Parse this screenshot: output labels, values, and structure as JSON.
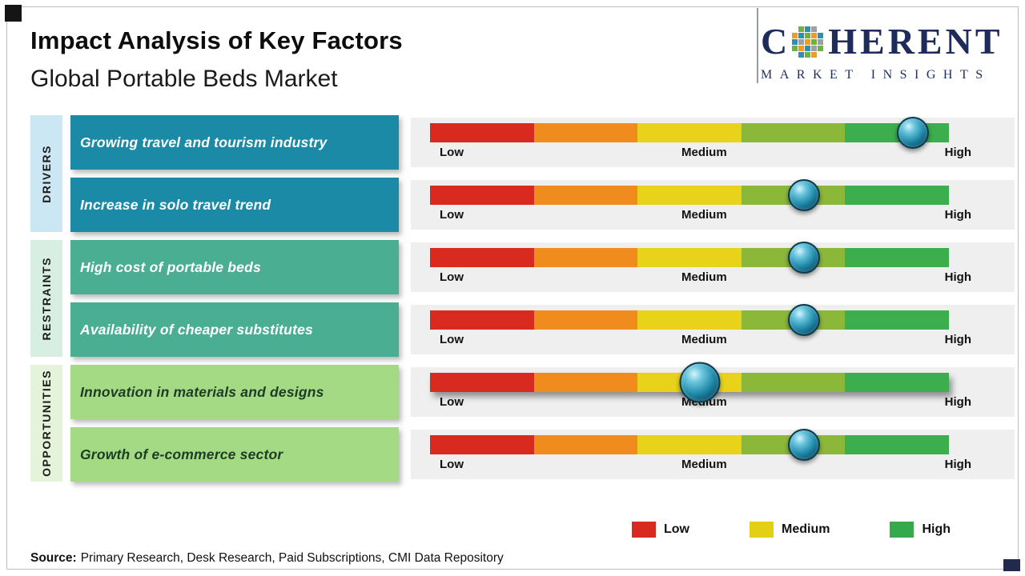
{
  "page": {
    "title": "Impact Analysis of Key Factors",
    "subtitle": "Global Portable Beds Market",
    "source_label": "Source:",
    "source_text": "Primary Research, Desk Research, Paid Subscriptions, CMI Data Repository"
  },
  "logo": {
    "brand_prefix": "C",
    "brand_suffix": "HERENT",
    "tagline": "MARKET INSIGHTS",
    "color": "#1d2c5b",
    "mosaic": [
      "",
      "#6cb33f",
      "#2f8fb0",
      "#9aa0a6",
      "",
      "#f19b1f",
      "#2f8fb0",
      "#6cb33f",
      "#f19b1f",
      "#2f8fb0",
      "#2f8fb0",
      "#9aa0a6",
      "#f19b1f",
      "#6cb33f",
      "#9aa0a6",
      "#6cb33f",
      "#f19b1f",
      "#2f8fb0",
      "#9aa0a6",
      "#6cb33f",
      "",
      "#2f8fb0",
      "#6cb33f",
      "#f19b1f",
      ""
    ]
  },
  "scale": {
    "low": "Low",
    "medium": "Medium",
    "high": "High"
  },
  "bar_colors": [
    "#d92a20",
    "#f08c1e",
    "#e8d21a",
    "#8cb83a",
    "#3cae4d"
  ],
  "legend": [
    {
      "label": "Low",
      "color": "#d92a20"
    },
    {
      "label": "Medium",
      "color": "#e3cf13"
    },
    {
      "label": "High",
      "color": "#35a94c"
    }
  ],
  "groups": [
    {
      "name": "DRIVERS",
      "strip_color": "#cbe7f3",
      "box_color": "#1a8aa6",
      "text_color": "#ffffff",
      "rows": [
        {
          "label": "Growing travel and tourism industry",
          "knob_pct": 93
        },
        {
          "label": "Increase in solo travel trend",
          "knob_pct": 72
        }
      ]
    },
    {
      "name": "RESTRAINTS",
      "strip_color": "#d7eee3",
      "box_color": "#49ae92",
      "text_color": "#ffffff",
      "rows": [
        {
          "label": "High cost of portable beds",
          "knob_pct": 72
        },
        {
          "label": "Availability of cheaper substitutes",
          "knob_pct": 72
        }
      ]
    },
    {
      "name": "OPPORTUNITIES",
      "strip_color": "#e5f3da",
      "box_color": "#a5da84",
      "text_color": "#1e3b26",
      "rows": [
        {
          "label": "Innovation in materials and designs",
          "knob_pct": 52
        },
        {
          "label": "Growth of e-commerce sector",
          "knob_pct": 72
        }
      ]
    }
  ]
}
